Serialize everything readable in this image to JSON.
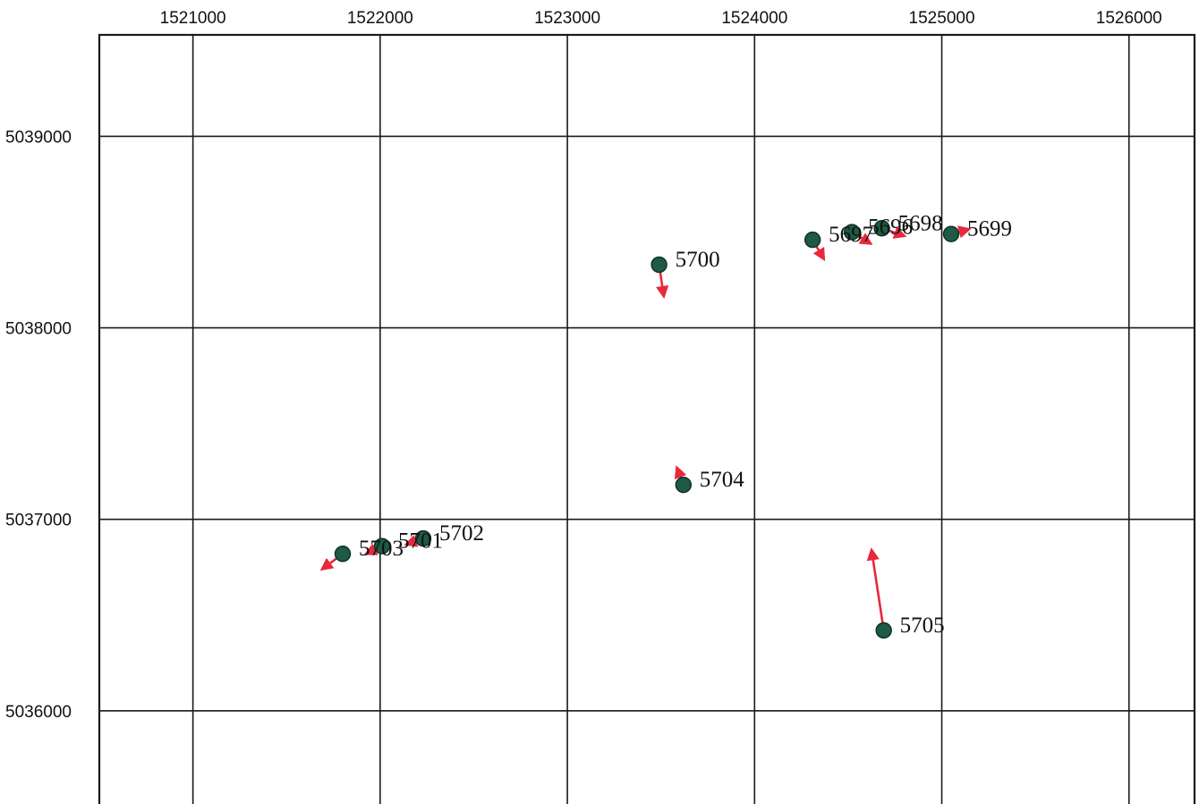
{
  "x_ticks": [
    "1521000",
    "1522000",
    "1523000",
    "1524000",
    "1525000",
    "1526000"
  ],
  "y_ticks": [
    "5039000",
    "5038000",
    "5037000",
    "5036000"
  ],
  "colors": {
    "station": "#1e5a45",
    "vector": "#e8283c",
    "grid": "#1a1a1a"
  },
  "map_data": {
    "type": "displacement-vector-map",
    "x_range": [
      1520500,
      1526350
    ],
    "y_range": [
      5035420,
      5039530
    ],
    "grid": true,
    "stations": [
      {
        "id": "5697",
        "label": "5697",
        "x": 1524310,
        "y": 5038460,
        "dx": 60,
        "dy": -100
      },
      {
        "id": "5696",
        "label": "5696",
        "x": 1524520,
        "y": 5038500,
        "dx": 100,
        "dy": -60
      },
      {
        "id": "5698",
        "label": "5698",
        "x": 1524680,
        "y": 5038520,
        "dx": 120,
        "dy": -40
      },
      {
        "id": "5699",
        "label": "5699",
        "x": 1525050,
        "y": 5038490,
        "dx": 95,
        "dy": 25
      },
      {
        "id": "5700",
        "label": "5700",
        "x": 1523490,
        "y": 5038330,
        "dx": 25,
        "dy": -165
      },
      {
        "id": "5704",
        "label": "5704",
        "x": 1523620,
        "y": 5037180,
        "dx": -35,
        "dy": 90
      },
      {
        "id": "5702",
        "label": "5702",
        "x": 1522230,
        "y": 5036900,
        "dx": -90,
        "dy": -30
      },
      {
        "id": "5701",
        "label": "5701",
        "x": 1522010,
        "y": 5036860,
        "dx": -85,
        "dy": -40
      },
      {
        "id": "5703",
        "label": "5703",
        "x": 1521800,
        "y": 5036820,
        "dx": -110,
        "dy": -80
      },
      {
        "id": "5705",
        "label": "5705",
        "x": 1524690,
        "y": 5036420,
        "dx": -65,
        "dy": 420
      }
    ]
  }
}
